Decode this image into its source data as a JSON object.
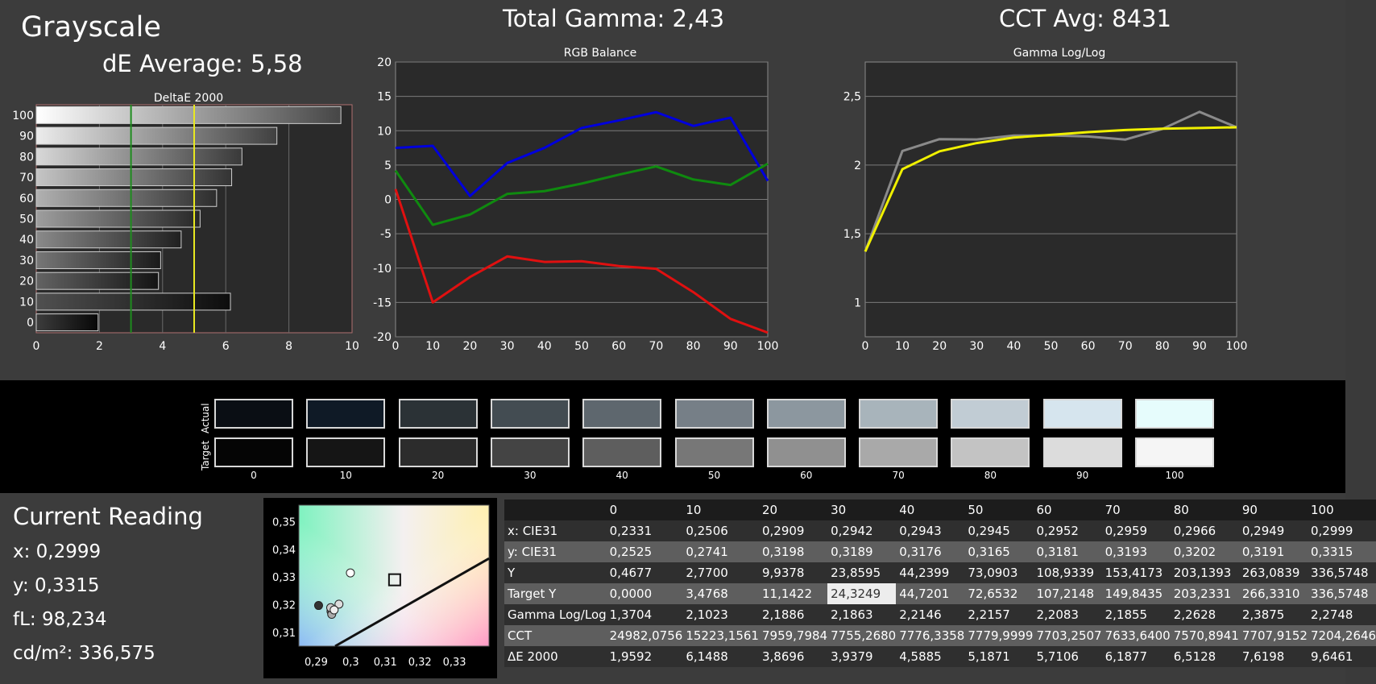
{
  "header": {
    "title": "Grayscale",
    "de_average": "dE Average: 5,58",
    "total_gamma": "Total Gamma: 2,43",
    "cct_avg": "CCT Avg: 8431"
  },
  "chart_data": [
    {
      "type": "bar",
      "title": "DeltaE 2000",
      "orientation": "horizontal",
      "categories": [
        "100",
        "90",
        "80",
        "70",
        "60",
        "50",
        "40",
        "30",
        "20",
        "10",
        "0"
      ],
      "values": [
        9.6461,
        7.6198,
        6.5128,
        6.1877,
        5.7106,
        5.1871,
        4.5885,
        3.9379,
        3.8696,
        6.1488,
        1.9592
      ],
      "xlim": [
        0,
        10
      ],
      "xticks": [
        "0",
        "2",
        "4",
        "6",
        "8",
        "10"
      ],
      "reference_lines": [
        {
          "x": 3,
          "color": "#1e8c1e"
        },
        {
          "x": 5,
          "color": "#e8e820"
        }
      ],
      "grid": true
    },
    {
      "type": "line",
      "title": "RGB Balance",
      "x": [
        0,
        10,
        20,
        30,
        40,
        50,
        60,
        70,
        80,
        90,
        100
      ],
      "series": [
        {
          "color": "#0000dd",
          "values": [
            7.5,
            7.8,
            0.5,
            5.3,
            7.5,
            10.4,
            11.5,
            12.7,
            10.7,
            11.9,
            2.7
          ]
        },
        {
          "color": "#0f8a0f",
          "values": [
            4.2,
            -3.7,
            -2.2,
            0.8,
            1.2,
            2.3,
            3.6,
            4.8,
            2.9,
            2.1,
            5.2
          ]
        },
        {
          "color": "#e01010",
          "values": [
            1.5,
            -15.0,
            -11.3,
            -8.3,
            -9.1,
            -9.0,
            -9.7,
            -10.1,
            -13.5,
            -17.4,
            -19.4
          ]
        }
      ],
      "ylim": [
        -20,
        20
      ],
      "xticks": [
        "0",
        "10",
        "20",
        "30",
        "40",
        "50",
        "60",
        "70",
        "80",
        "90",
        "100"
      ],
      "yticks": [
        "20",
        "15",
        "10",
        "5",
        "0",
        "-5",
        "-10",
        "-15",
        "-20"
      ],
      "grid": true
    },
    {
      "type": "line",
      "title": "Gamma Log/Log",
      "x": [
        0,
        10,
        20,
        30,
        40,
        50,
        60,
        70,
        80,
        90,
        100
      ],
      "series": [
        {
          "color": "#8a8a8a",
          "values": [
            1.3704,
            2.1023,
            2.1886,
            2.1863,
            2.2146,
            2.2157,
            2.2083,
            2.1855,
            2.2628,
            2.3875,
            2.2748
          ]
        },
        {
          "color": "#f0f000",
          "values": [
            1.37,
            1.97,
            2.1,
            2.16,
            2.2,
            2.22,
            2.24,
            2.255,
            2.265,
            2.27,
            2.275
          ]
        }
      ],
      "ylim": [
        0.75,
        2.75
      ],
      "xticks": [
        "0",
        "10",
        "20",
        "30",
        "40",
        "50",
        "60",
        "70",
        "80",
        "90",
        "100"
      ],
      "yticks": [
        "2,5",
        "2",
        "1,5",
        "1"
      ],
      "grid": true
    },
    {
      "type": "scatter",
      "xlim": [
        0.285,
        0.34
      ],
      "ylim": [
        0.305,
        0.356
      ],
      "xticks": [
        "0,29",
        "0,3",
        "0,31",
        "0,32",
        "0,33"
      ],
      "yticks": [
        "0,35",
        "0,34",
        "0,33",
        "0,32",
        "0,31"
      ],
      "points": [
        {
          "x": 0.2907,
          "y": 0.3197,
          "color": "#333333"
        },
        {
          "x": 0.2943,
          "y": 0.3176,
          "color": "#888888"
        },
        {
          "x": 0.2945,
          "y": 0.3165,
          "color": "#aaaaaa"
        },
        {
          "x": 0.2942,
          "y": 0.3189,
          "color": "#cccccc"
        },
        {
          "x": 0.2966,
          "y": 0.3202,
          "color": "#dddddd"
        },
        {
          "x": 0.2952,
          "y": 0.3181,
          "color": "#eeeeee"
        },
        {
          "x": 0.2999,
          "y": 0.3315,
          "color": "#ffffff"
        }
      ],
      "target": {
        "x": 0.3127,
        "y": 0.329
      }
    }
  ],
  "swatches": {
    "row_actual_label": "Actual",
    "row_target_label": "Target",
    "levels": [
      "0",
      "10",
      "20",
      "30",
      "40",
      "50",
      "60",
      "70",
      "80",
      "90",
      "100"
    ],
    "actual_colors": [
      "#0a0e14",
      "#0f1a26",
      "#2b3236",
      "#434c52",
      "#5e676e",
      "#767f87",
      "#8c979f",
      "#a8b4bb",
      "#c1ccd4",
      "#d6e5ee",
      "#e6fcfc"
    ],
    "target_colors": [
      "#050505",
      "#151515",
      "#2c2c2c",
      "#444444",
      "#5e5e5e",
      "#777777",
      "#909090",
      "#a9a9a9",
      "#c3c3c3",
      "#dcdcdc",
      "#f5f5f5"
    ]
  },
  "reading": {
    "title": "Current Reading",
    "x": "x: 0,2999",
    "y": "y: 0,3315",
    "fl": "fL: 98,234",
    "cdm2": "cd/m²: 336,575"
  },
  "table": {
    "columns": [
      "0",
      "10",
      "20",
      "30",
      "40",
      "50",
      "60",
      "70",
      "80",
      "90",
      "100"
    ],
    "rows": [
      {
        "label": "x: CIE31",
        "values": [
          "0,2331",
          "0,2506",
          "0,2909",
          "0,2942",
          "0,2943",
          "0,2945",
          "0,2952",
          "0,2959",
          "0,2966",
          "0,2949",
          "0,2999"
        ]
      },
      {
        "label": "y: CIE31",
        "values": [
          "0,2525",
          "0,2741",
          "0,3198",
          "0,3189",
          "0,3176",
          "0,3165",
          "0,3181",
          "0,3193",
          "0,3202",
          "0,3191",
          "0,3315"
        ]
      },
      {
        "label": "Y",
        "values": [
          "0,4677",
          "2,7700",
          "9,9378",
          "23,8595",
          "44,2399",
          "73,0903",
          "108,9339",
          "153,4173",
          "203,1393",
          "263,0839",
          "336,5748"
        ]
      },
      {
        "label": "Target Y",
        "values": [
          "0,0000",
          "3,4768",
          "11,1422",
          "24,3249",
          "44,7201",
          "72,6532",
          "107,2148",
          "149,8435",
          "203,2331",
          "266,3310",
          "336,5748"
        ]
      },
      {
        "label": "Gamma Log/Log",
        "values": [
          "1,3704",
          "2,1023",
          "2,1886",
          "2,1863",
          "2,2146",
          "2,2157",
          "2,2083",
          "2,1855",
          "2,2628",
          "2,3875",
          "2,2748"
        ]
      },
      {
        "label": "CCT",
        "values": [
          "24982,0756",
          "15223,1561",
          "7959,7984",
          "7755,2680",
          "7776,3358",
          "7779,9999",
          "7703,2507",
          "7633,6400",
          "7570,8941",
          "7707,9152",
          "7204,2646"
        ]
      },
      {
        "label": "ΔE 2000",
        "values": [
          "1,9592",
          "6,1488",
          "3,8696",
          "3,9379",
          "4,5885",
          "5,1871",
          "5,7106",
          "6,1877",
          "6,5128",
          "7,6198",
          "9,6461"
        ]
      }
    ]
  }
}
